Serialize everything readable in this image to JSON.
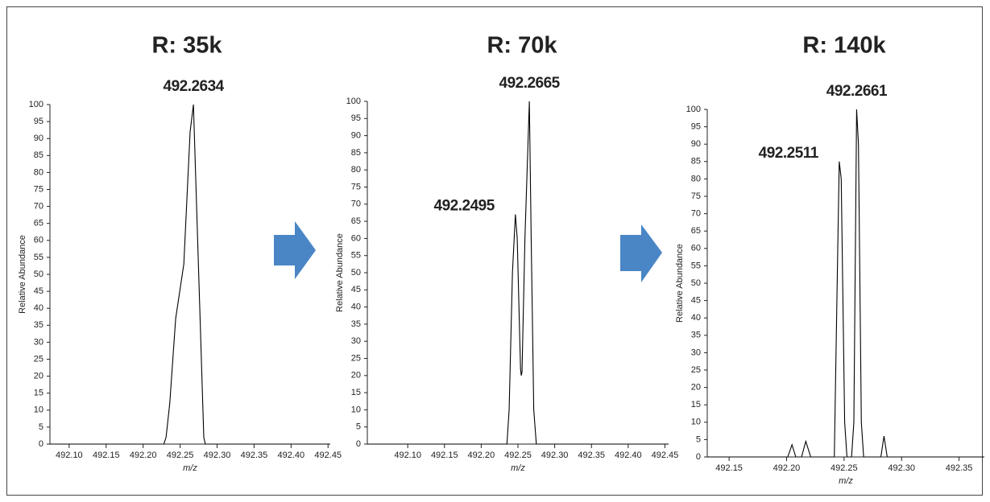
{
  "chart_data": [
    {
      "type": "line",
      "title": "R: 35k",
      "xlabel": "m/z",
      "ylabel": "Relative Abundance",
      "xlim": [
        492.074,
        492.453
      ],
      "ylim": [
        0,
        100
      ],
      "xticks": [
        {
          "value": 492.1,
          "label": "492.10"
        },
        492.15,
        {
          "value": 492.2,
          "label": "492.20"
        },
        492.25,
        {
          "value": 492.3,
          "label": "492.30"
        },
        492.35,
        {
          "value": 492.4,
          "label": "492.40"
        },
        492.45
      ],
      "yticks": [
        0,
        5,
        10,
        15,
        20,
        25,
        30,
        35,
        40,
        45,
        50,
        55,
        60,
        65,
        70,
        75,
        80,
        85,
        90,
        95,
        100
      ],
      "color": "#000000",
      "x": [
        492.074,
        492.228,
        492.231,
        492.236,
        492.244,
        492.255,
        492.2635,
        492.268,
        492.282,
        492.284,
        492.453
      ],
      "values": [
        0,
        0,
        2,
        12,
        37,
        53,
        92,
        100,
        2,
        0,
        0
      ],
      "peak_labels": [
        {
          "label": "492.2634",
          "x": 492.268,
          "y": 100
        }
      ]
    },
    {
      "type": "line",
      "title": "R: 70k",
      "xlabel": "m/z",
      "ylabel": "Relative Abundance",
      "xlim": [
        492.045,
        492.455
      ],
      "ylim": [
        0,
        100
      ],
      "xticks": [
        {
          "value": 492.1,
          "label": "492.10"
        },
        492.15,
        {
          "value": 492.2,
          "label": "492.20"
        },
        492.25,
        {
          "value": 492.3,
          "label": "492.30"
        },
        492.35,
        {
          "value": 492.4,
          "label": "492.40"
        },
        492.45
      ],
      "yticks": [
        0,
        5,
        10,
        15,
        20,
        25,
        30,
        35,
        40,
        45,
        50,
        55,
        60,
        65,
        70,
        75,
        80,
        85,
        90,
        95,
        100
      ],
      "color": "#000000",
      "x": [
        492.045,
        492.235,
        492.238,
        492.2425,
        492.2465,
        492.249,
        492.2535,
        492.2545,
        492.2555,
        492.2595,
        492.2655,
        492.268,
        492.2715,
        492.275,
        492.455
      ],
      "values": [
        0,
        0,
        10,
        50,
        67,
        60,
        22,
        20,
        21,
        60,
        100,
        60,
        10,
        0,
        0
      ],
      "peak_labels": [
        {
          "label": "492.2495",
          "x": 492.2465,
          "y": 67
        },
        {
          "label": "492.2665",
          "x": 492.2655,
          "y": 100
        }
      ]
    },
    {
      "type": "line",
      "title": "R: 140k",
      "xlabel": "m/z",
      "ylabel": "Relative Abundance",
      "xlim": [
        492.131,
        492.372
      ],
      "ylim": [
        0,
        100
      ],
      "xticks": [
        492.15,
        {
          "value": 492.2,
          "label": "492.20"
        },
        492.25,
        {
          "value": 492.3,
          "label": "492.30"
        },
        492.35
      ],
      "yticks": [
        0,
        5,
        10,
        15,
        20,
        25,
        30,
        35,
        40,
        45,
        50,
        55,
        60,
        65,
        70,
        75,
        80,
        85,
        90,
        95,
        100
      ],
      "color": "#000000",
      "x": [
        492.131,
        492.201,
        492.2047,
        492.208,
        492.213,
        492.2167,
        492.221,
        492.2415,
        492.2445,
        492.2458,
        492.2475,
        492.2505,
        492.2525,
        492.2565,
        492.2585,
        492.2609,
        492.2625,
        492.265,
        492.267,
        492.282,
        492.2847,
        492.2875,
        492.372
      ],
      "values": [
        0,
        0,
        3.5,
        0,
        0,
        4.5,
        0,
        0,
        60,
        85,
        80,
        10,
        0,
        0,
        10,
        100,
        90,
        10,
        0,
        0,
        6,
        0,
        0
      ],
      "peak_labels": [
        {
          "label": "492.2511",
          "x": 492.2458,
          "y": 85
        },
        {
          "label": "492.2661",
          "x": 492.2609,
          "y": 100
        }
      ]
    }
  ]
}
